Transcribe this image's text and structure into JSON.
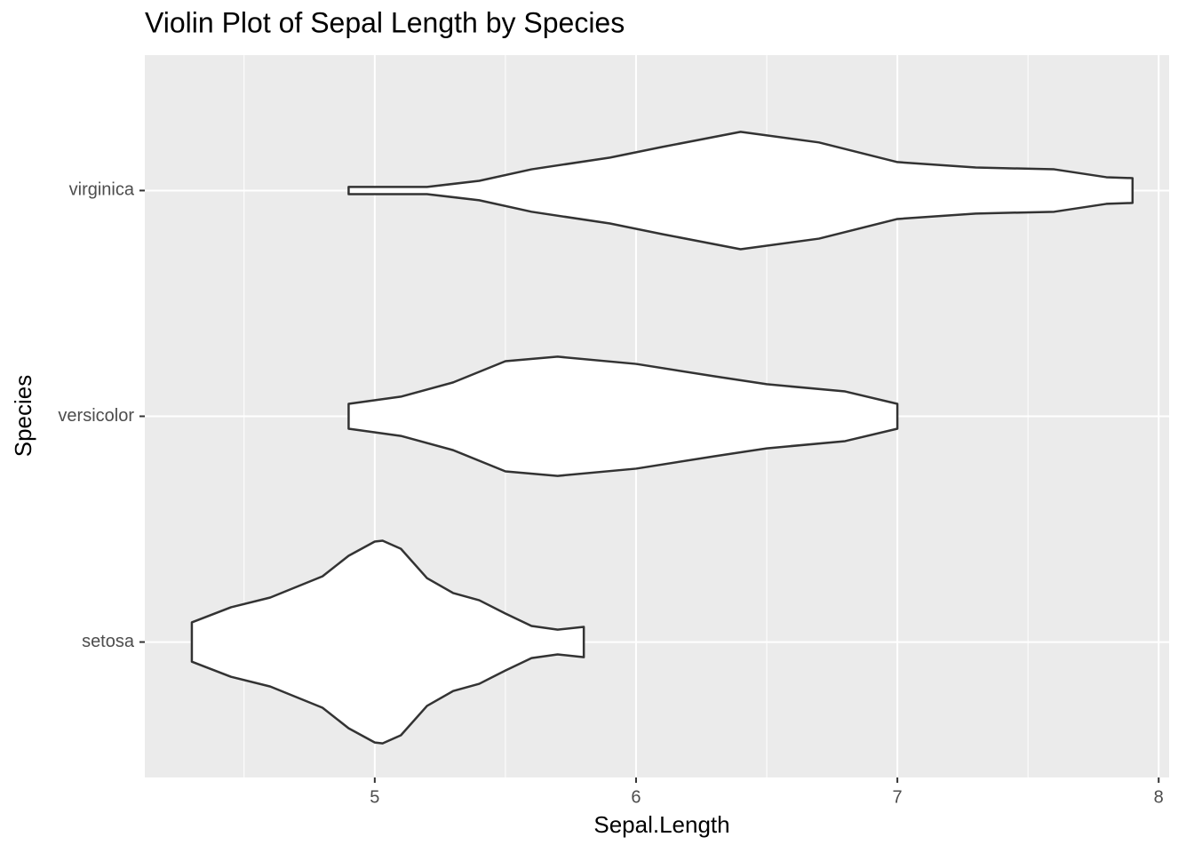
{
  "chart_data": {
    "type": "violin",
    "title": "Violin Plot of Sepal Length by Species",
    "x_label": "Sepal.Length",
    "y_label": "Species",
    "categories": [
      "setosa",
      "versicolor",
      "virginica"
    ],
    "violins": [
      {
        "x": [
          4.3,
          4.45,
          4.6,
          4.8,
          4.9,
          5.0,
          5.03,
          5.1,
          5.2,
          5.3,
          5.4,
          5.5,
          5.6,
          5.7,
          5.8
        ],
        "widths": [
          0.087,
          0.154,
          0.197,
          0.291,
          0.382,
          0.445,
          0.449,
          0.413,
          0.283,
          0.217,
          0.185,
          0.126,
          0.071,
          0.055,
          0.067
        ]
      },
      {
        "x": [
          4.9,
          5.1,
          5.3,
          5.5,
          5.7,
          6.0,
          6.3,
          6.5,
          6.8,
          7.0
        ],
        "widths": [
          0.055,
          0.087,
          0.15,
          0.244,
          0.264,
          0.232,
          0.177,
          0.142,
          0.11,
          0.055
        ]
      },
      {
        "x": [
          4.9,
          5.2,
          5.4,
          5.6,
          5.9,
          6.1,
          6.4,
          6.7,
          7.0,
          7.3,
          7.6,
          7.8,
          7.9
        ],
        "widths": [
          0.016,
          0.016,
          0.043,
          0.094,
          0.146,
          0.193,
          0.26,
          0.213,
          0.126,
          0.102,
          0.094,
          0.059,
          0.055
        ]
      }
    ],
    "fill": "#ffffff",
    "outline": "#333333",
    "xlim": [
      4.12,
      8.04
    ],
    "xticks": [
      5,
      6,
      7,
      8
    ],
    "xminor": [
      4.5,
      5.5,
      6.5,
      7.5
    ],
    "ylim": [
      0.4,
      3.6
    ],
    "grid": true
  }
}
